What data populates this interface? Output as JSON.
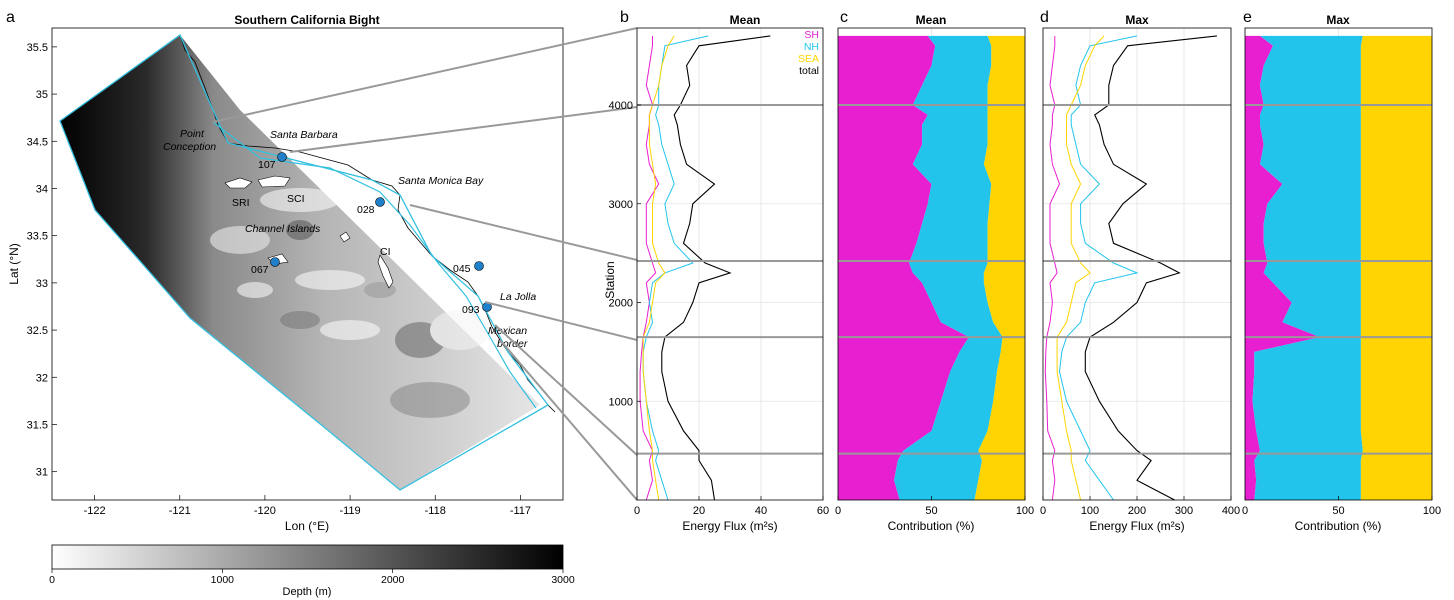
{
  "panels": {
    "a": {
      "letter": "a",
      "title": "Southern California Bight",
      "xlabel": "Lon (°E)",
      "ylabel": "Lat (°N)",
      "xticks": [
        "-122",
        "-121",
        "-120",
        "-119",
        "-118",
        "-117"
      ],
      "yticks": [
        "31",
        "31.5",
        "32",
        "32.5",
        "33",
        "33.5",
        "34",
        "34.5",
        "35",
        "35.5"
      ],
      "place_labels": [
        "Point",
        "Conception",
        "Santa Barbara",
        "Santa Monica Bay",
        "Channel Islands",
        "SRI",
        "SCI",
        "CI",
        "La Jolla",
        "Mexican",
        "border"
      ],
      "stations": [
        "107",
        "028",
        "067",
        "045",
        "093"
      ],
      "colorbar": {
        "label": "Depth (m)",
        "ticks": [
          "0",
          "1000",
          "2000",
          "3000"
        ]
      }
    },
    "b": {
      "letter": "b",
      "title": "Mean",
      "xlabel": "Energy Flux (m²s)",
      "ylabel": "Station"
    },
    "c": {
      "letter": "c",
      "title": "Mean",
      "xlabel": "Contribution (%)"
    },
    "d": {
      "letter": "d",
      "title": "Max",
      "xlabel": "Energy Flux (m²s)"
    },
    "e": {
      "letter": "e",
      "title": "Max",
      "xlabel": "Contribution (%)"
    }
  },
  "colors": {
    "SH": "#e81fd0",
    "NH": "#22c4ec",
    "SEA": "#ffd400",
    "total": "#000000",
    "boundary": "#33c0e0"
  },
  "chart_data": [
    {
      "type": "line",
      "panel": "b",
      "title": "Mean",
      "xlabel": "Energy Flux (m²s)",
      "ylabel": "Station",
      "xlim": [
        0,
        60
      ],
      "ylim": [
        0,
        4780
      ],
      "xticks": [
        "0",
        "20",
        "40",
        "60"
      ],
      "yticks": [
        "1000",
        "2000",
        "3000",
        "4000"
      ],
      "legend": [
        "SH",
        "NH",
        "SEA",
        "total"
      ],
      "legend_position": "top-right",
      "station": [
        0,
        200,
        400,
        500,
        700,
        1000,
        1300,
        1500,
        1650,
        1800,
        2000,
        2200,
        2300,
        2400,
        2600,
        2800,
        3000,
        3200,
        3400,
        3600,
        3800,
        3900,
        4000,
        4200,
        4400,
        4600,
        4700
      ],
      "series": [
        {
          "name": "SH",
          "values": [
            3,
            5,
            4,
            5,
            2,
            1,
            1,
            1.5,
            2,
            3,
            4,
            3,
            6,
            5,
            3,
            3,
            3,
            7,
            4,
            3,
            4,
            4,
            5,
            3,
            4,
            5,
            5
          ]
        },
        {
          "name": "NH",
          "values": [
            10,
            8,
            6,
            7,
            5,
            3,
            2,
            2,
            3,
            5,
            4,
            5,
            9,
            18,
            12,
            10,
            9,
            12,
            10,
            8,
            7,
            6,
            7,
            7,
            8,
            9,
            23
          ]
        },
        {
          "name": "SEA",
          "values": [
            7,
            6,
            5,
            5,
            4,
            3,
            2,
            2,
            2,
            4,
            5,
            6,
            9,
            7,
            5,
            5,
            5,
            6,
            5,
            4,
            4,
            4,
            5,
            7,
            8,
            10,
            12
          ]
        },
        {
          "name": "total",
          "values": [
            25,
            24,
            20,
            20,
            15,
            10,
            8,
            8,
            9,
            15,
            18,
            20,
            30,
            22,
            15,
            17,
            18,
            25,
            16,
            14,
            13,
            12,
            14,
            17,
            16,
            20,
            43
          ]
        }
      ]
    },
    {
      "type": "area",
      "panel": "c",
      "title": "Mean",
      "xlabel": "Contribution (%)",
      "xlim": [
        0,
        100
      ],
      "ylim": [
        0,
        4780
      ],
      "xticks": [
        "0",
        "50",
        "100"
      ],
      "station": [
        0,
        200,
        400,
        500,
        700,
        1000,
        1300,
        1500,
        1650,
        1800,
        2000,
        2200,
        2300,
        2400,
        2600,
        2800,
        3000,
        3200,
        3400,
        3600,
        3800,
        3900,
        4000,
        4200,
        4400,
        4600,
        4700
      ],
      "series": [
        {
          "name": "SH",
          "values": [
            33,
            30,
            32,
            35,
            50,
            55,
            60,
            65,
            70,
            55,
            50,
            45,
            40,
            38,
            42,
            45,
            48,
            50,
            40,
            45,
            45,
            48,
            40,
            45,
            50,
            52,
            48
          ]
        },
        {
          "name": "NH",
          "values": [
            40,
            45,
            45,
            40,
            30,
            28,
            25,
            22,
            18,
            28,
            30,
            33,
            38,
            42,
            38,
            35,
            33,
            32,
            38,
            35,
            35,
            32,
            40,
            35,
            32,
            30,
            32
          ]
        },
        {
          "name": "SEA",
          "values": [
            27,
            25,
            23,
            25,
            20,
            17,
            15,
            13,
            12,
            17,
            20,
            22,
            22,
            20,
            20,
            20,
            19,
            18,
            22,
            20,
            20,
            20,
            20,
            20,
            18,
            18,
            20
          ]
        }
      ]
    },
    {
      "type": "line",
      "panel": "d",
      "title": "Max",
      "xlabel": "Energy Flux (m²s)",
      "xlim": [
        0,
        400
      ],
      "ylim": [
        0,
        4780
      ],
      "xticks": [
        "0",
        "100",
        "200",
        "300",
        "400"
      ],
      "station": [
        0,
        200,
        400,
        500,
        700,
        1000,
        1300,
        1500,
        1650,
        1800,
        2000,
        2200,
        2300,
        2400,
        2600,
        2800,
        3000,
        3200,
        3400,
        3600,
        3800,
        3900,
        4000,
        4200,
        4400,
        4600,
        4700
      ],
      "series": [
        {
          "name": "SH",
          "values": [
            20,
            25,
            20,
            25,
            10,
            8,
            5,
            6,
            8,
            15,
            20,
            15,
            30,
            25,
            15,
            15,
            15,
            35,
            20,
            15,
            20,
            20,
            25,
            15,
            20,
            25,
            25
          ]
        },
        {
          "name": "NH",
          "values": [
            150,
            120,
            90,
            100,
            80,
            50,
            35,
            40,
            50,
            80,
            90,
            110,
            200,
            150,
            90,
            80,
            80,
            120,
            80,
            70,
            60,
            60,
            80,
            70,
            80,
            100,
            200
          ]
        },
        {
          "name": "SEA",
          "values": [
            80,
            70,
            60,
            60,
            50,
            40,
            30,
            30,
            30,
            50,
            60,
            70,
            100,
            80,
            60,
            60,
            60,
            80,
            60,
            50,
            50,
            50,
            60,
            80,
            90,
            110,
            130
          ]
        },
        {
          "name": "total",
          "values": [
            280,
            200,
            230,
            200,
            160,
            120,
            90,
            90,
            100,
            150,
            200,
            220,
            290,
            250,
            150,
            140,
            170,
            220,
            150,
            130,
            120,
            110,
            140,
            140,
            150,
            180,
            370
          ]
        }
      ]
    },
    {
      "type": "area",
      "panel": "e",
      "title": "Max",
      "xlabel": "Contribution (%)",
      "xlim": [
        0,
        100
      ],
      "ylim": [
        0,
        4780
      ],
      "xticks": [
        "0",
        "50",
        "100"
      ],
      "station": [
        0,
        200,
        400,
        500,
        700,
        1000,
        1300,
        1500,
        1650,
        1800,
        2000,
        2200,
        2300,
        2400,
        2600,
        2800,
        3000,
        3200,
        3400,
        3600,
        3800,
        3900,
        4000,
        4200,
        4400,
        4600,
        4700
      ],
      "series": [
        {
          "name": "SH",
          "values": [
            5,
            6,
            5,
            8,
            6,
            4,
            5,
            5,
            40,
            20,
            25,
            15,
            10,
            12,
            10,
            10,
            12,
            20,
            8,
            10,
            8,
            8,
            10,
            8,
            10,
            15,
            8
          ]
        },
        {
          "name": "NH",
          "values": [
            57,
            56,
            57,
            55,
            56,
            58,
            57,
            57,
            22,
            42,
            37,
            47,
            52,
            50,
            52,
            52,
            50,
            42,
            54,
            52,
            54,
            54,
            52,
            54,
            52,
            47,
            55
          ]
        },
        {
          "name": "SEA",
          "values": [
            38,
            38,
            38,
            37,
            38,
            38,
            38,
            38,
            38,
            38,
            38,
            38,
            38,
            38,
            38,
            38,
            38,
            38,
            38,
            38,
            38,
            38,
            38,
            38,
            38,
            38,
            37
          ]
        }
      ]
    }
  ]
}
